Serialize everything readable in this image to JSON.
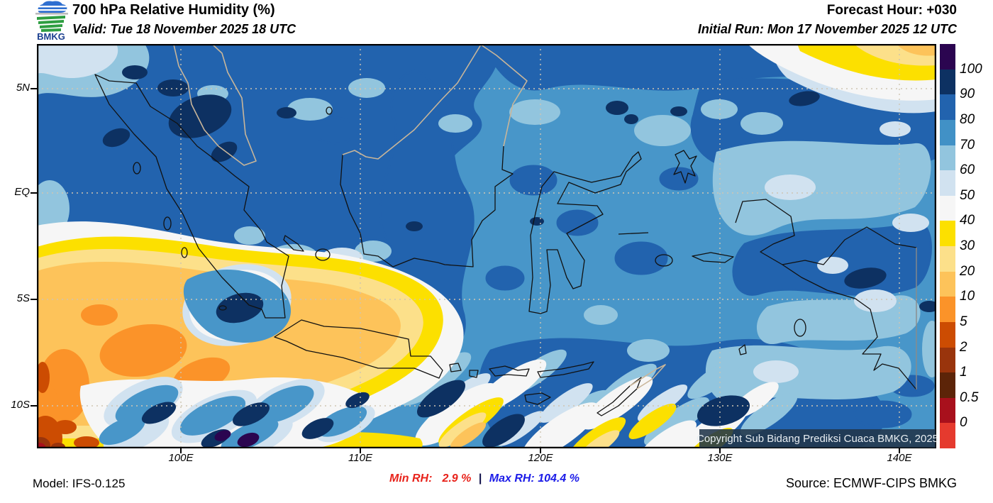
{
  "header": {
    "logo_text": "BMKG",
    "title": "700 hPa Relative Humidity (%)",
    "valid_line": "Valid: Tue 18 November 2025 18 UTC",
    "forecast_hour": "Forecast Hour: +030",
    "initial_run": "Initial Run: Mon 17 November 2025 12 UTC"
  },
  "map": {
    "lat_labels": [
      "5N",
      "EQ",
      "5S",
      "10S"
    ],
    "lon_labels": [
      "100E",
      "110E",
      "120E",
      "130E",
      "140E"
    ],
    "copyright": "Copyright Sub Bidang Prediksi Cuaca BMKG, 2025"
  },
  "legend": {
    "labels": [
      "100",
      "90",
      "80",
      "70",
      "60",
      "50",
      "40",
      "30",
      "20",
      "10",
      "5",
      "2",
      "1",
      "0.5",
      "0"
    ],
    "colors": [
      "#2b0550",
      "#0d3162",
      "#2263ae",
      "#4191c6",
      "#92c5de",
      "#d1e2f0",
      "#f6f6f6",
      "#fce000",
      "#fce08a",
      "#fdc35a",
      "#fb9329",
      "#cc4c02",
      "#99340c",
      "#5c2408",
      "#a8101c",
      "#e53a2e"
    ]
  },
  "footer": {
    "model": "Model: IFS-0.125",
    "min_label": "Min RH:",
    "min_value": "2.9 %",
    "separator": "|",
    "max_label": "Max RH:",
    "max_value": "104.4 %",
    "min_color": "#e8231b",
    "max_color": "#1b1be8",
    "source": "Source: ECMWF-CIPS BMKG"
  }
}
